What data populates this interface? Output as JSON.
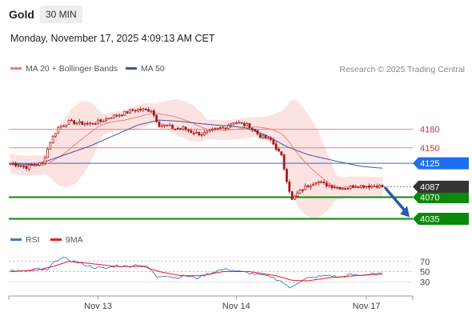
{
  "header": {
    "title": "Gold",
    "timeframe": "30 MIN",
    "datetime": "Monday, November 17, 2025 4:09:13 AM CET"
  },
  "legend": {
    "ma20": "MA 20 + Bollinger Bands",
    "ma50": "MA 50",
    "credit": "Research © 2025 Trading Central"
  },
  "rsi_legend": {
    "rsi": "RSI",
    "ma": "9MA"
  },
  "colors": {
    "ma20": "#f08080",
    "ma50": "#3a5a98",
    "bands": "#fde2e2",
    "candle": "#a31616",
    "current": "#333333",
    "resistance": "#f08080",
    "pivot": "#1e6ef0",
    "support": "#0a8a0a",
    "arrow": "#2b5aa8",
    "rsi": "#4a6fd0",
    "rsi_ma": "#e02020"
  },
  "chart_data": {
    "type": "candlestick",
    "instrument": "Gold",
    "timeframe": "30 MIN",
    "x_labels": [
      "Nov 13",
      "Nov 14",
      "Nov 17"
    ],
    "ylim": [
      4020,
      4260
    ],
    "current_price": 4087,
    "levels": [
      {
        "value": 4180,
        "label": "4180",
        "kind": "resistance"
      },
      {
        "value": 4150,
        "label": "4150",
        "kind": "resistance"
      },
      {
        "value": 4125,
        "label": "4125",
        "kind": "pivot"
      },
      {
        "value": 4070,
        "label": "4070",
        "kind": "support"
      },
      {
        "value": 4035,
        "label": "4035",
        "kind": "support"
      }
    ],
    "current_label": "4087",
    "price_anchors": [
      [
        0,
        4125
      ],
      [
        3,
        4122
      ],
      [
        6,
        4119
      ],
      [
        9,
        4123
      ],
      [
        12,
        4125
      ],
      [
        15,
        4160
      ],
      [
        18,
        4183
      ],
      [
        22,
        4192
      ],
      [
        26,
        4190
      ],
      [
        30,
        4189
      ],
      [
        34,
        4193
      ],
      [
        38,
        4201
      ],
      [
        42,
        4205
      ],
      [
        46,
        4211
      ],
      [
        50,
        4212
      ],
      [
        53,
        4211
      ],
      [
        56,
        4187
      ],
      [
        59,
        4186
      ],
      [
        62,
        4181
      ],
      [
        65,
        4182
      ],
      [
        68,
        4176
      ],
      [
        72,
        4172
      ],
      [
        76,
        4178
      ],
      [
        80,
        4183
      ],
      [
        84,
        4192
      ],
      [
        87,
        4189
      ],
      [
        90,
        4185
      ],
      [
        94,
        4169
      ],
      [
        98,
        4163
      ],
      [
        102,
        4136
      ],
      [
        104,
        4098
      ],
      [
        106,
        4065
      ],
      [
        108,
        4076
      ],
      [
        111,
        4086
      ],
      [
        115,
        4096
      ],
      [
        119,
        4090
      ],
      [
        123,
        4086
      ],
      [
        127,
        4085
      ],
      [
        130,
        4089
      ],
      [
        134,
        4088
      ],
      [
        138,
        4089
      ],
      [
        140,
        4087
      ]
    ],
    "ma50_anchors": [
      [
        0,
        4124
      ],
      [
        10,
        4123
      ],
      [
        20,
        4138
      ],
      [
        30,
        4153
      ],
      [
        40,
        4172
      ],
      [
        48,
        4187
      ],
      [
        56,
        4195
      ],
      [
        64,
        4193
      ],
      [
        72,
        4189
      ],
      [
        80,
        4186
      ],
      [
        88,
        4183
      ],
      [
        96,
        4171
      ],
      [
        104,
        4152
      ],
      [
        112,
        4139
      ],
      [
        122,
        4129
      ],
      [
        132,
        4120
      ],
      [
        140,
        4117
      ]
    ],
    "rsi": {
      "levels": [
        70,
        50,
        30
      ],
      "ylim": [
        10,
        90
      ],
      "rsi_anchors": [
        [
          0,
          52
        ],
        [
          5,
          50
        ],
        [
          10,
          55
        ],
        [
          14,
          52
        ],
        [
          17,
          73
        ],
        [
          20,
          76
        ],
        [
          24,
          70
        ],
        [
          28,
          63
        ],
        [
          32,
          58
        ],
        [
          36,
          56
        ],
        [
          40,
          62
        ],
        [
          44,
          60
        ],
        [
          48,
          64
        ],
        [
          52,
          58
        ],
        [
          55,
          40
        ],
        [
          58,
          43
        ],
        [
          62,
          38
        ],
        [
          66,
          42
        ],
        [
          70,
          37
        ],
        [
          74,
          45
        ],
        [
          78,
          52
        ],
        [
          82,
          55
        ],
        [
          86,
          50
        ],
        [
          90,
          47
        ],
        [
          94,
          43
        ],
        [
          98,
          40
        ],
        [
          102,
          31
        ],
        [
          105,
          18
        ],
        [
          108,
          28
        ],
        [
          112,
          37
        ],
        [
          116,
          40
        ],
        [
          120,
          43
        ],
        [
          124,
          38
        ],
        [
          128,
          44
        ],
        [
          132,
          42
        ],
        [
          136,
          47
        ],
        [
          140,
          45
        ]
      ],
      "ma_anchors": [
        [
          0,
          50
        ],
        [
          10,
          53
        ],
        [
          16,
          60
        ],
        [
          22,
          70
        ],
        [
          30,
          66
        ],
        [
          40,
          60
        ],
        [
          50,
          60
        ],
        [
          56,
          50
        ],
        [
          64,
          42
        ],
        [
          72,
          42
        ],
        [
          80,
          50
        ],
        [
          90,
          50
        ],
        [
          100,
          42
        ],
        [
          106,
          33
        ],
        [
          112,
          32
        ],
        [
          120,
          38
        ],
        [
          130,
          42
        ],
        [
          140,
          45
        ]
      ]
    }
  }
}
